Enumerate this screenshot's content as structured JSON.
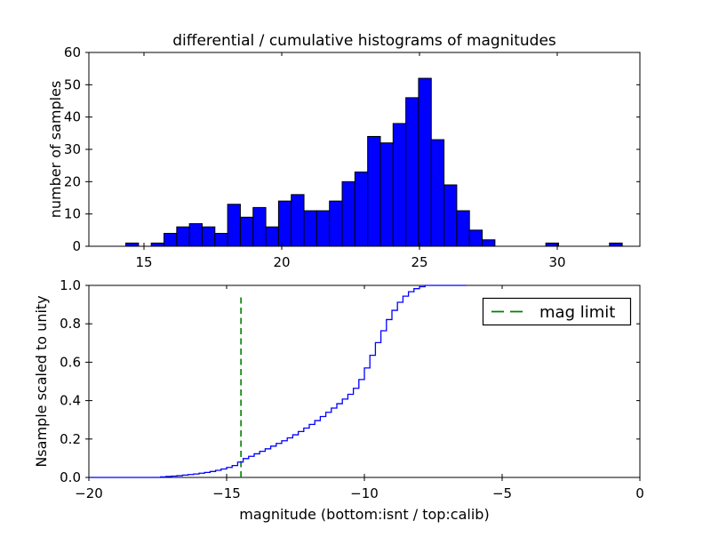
{
  "title": "differential / cumulative histograms of magnitudes",
  "colors": {
    "background": "#ffffff",
    "bar_fill": "#0000ff",
    "bar_edge": "#000000",
    "curve": "#0000ff",
    "mag_limit_line": "#008000",
    "axis": "#000000"
  },
  "chart_data": [
    {
      "type": "bar",
      "title": "differential / cumulative histograms of magnitudes",
      "xlabel": "",
      "ylabel": "number of samples",
      "xlim": [
        13,
        33
      ],
      "ylim": [
        0,
        60
      ],
      "grid": false,
      "x_tick_values": [
        15,
        20,
        25,
        30
      ],
      "x_tick_labels": [
        "15",
        "20",
        "25",
        "30"
      ],
      "y_tick_values": [
        0,
        10,
        20,
        30,
        40,
        50,
        60
      ],
      "y_tick_labels": [
        "0",
        "10",
        "20",
        "30",
        "40",
        "50",
        "60"
      ],
      "bin_start": 14.34,
      "bin_width": 0.462,
      "counts": [
        1,
        0,
        1,
        4,
        6,
        7,
        6,
        4,
        13,
        9,
        12,
        6,
        14,
        16,
        11,
        11,
        14,
        20,
        23,
        34,
        32,
        38,
        46,
        52,
        33,
        19,
        11,
        5,
        2,
        0,
        0,
        0,
        0,
        1,
        0,
        0,
        0,
        0,
        1
      ]
    },
    {
      "type": "line",
      "title": "",
      "xlabel": "magnitude (bottom:isnt / top:calib)",
      "ylabel": "Nsample scaled to unity",
      "xlim": [
        -20,
        0
      ],
      "ylim": [
        0.0,
        1.0
      ],
      "grid": false,
      "legend_position": "upper right",
      "x_tick_values": [
        -20,
        -15,
        -10,
        -5,
        0
      ],
      "x_tick_labels": [
        "−20",
        "−15",
        "−10",
        "−5",
        "0"
      ],
      "y_tick_values": [
        0.0,
        0.2,
        0.4,
        0.6,
        0.8,
        1.0
      ],
      "y_tick_labels": [
        "0.0",
        "0.2",
        "0.4",
        "0.6",
        "0.8",
        "1.0"
      ],
      "curve_start_x": -20,
      "curve_end_x": -6.3,
      "steps": [
        [
          -17.4,
          0.003
        ],
        [
          -17.2,
          0.005
        ],
        [
          -17.0,
          0.007
        ],
        [
          -16.8,
          0.009
        ],
        [
          -16.6,
          0.012
        ],
        [
          -16.4,
          0.015
        ],
        [
          -16.2,
          0.018
        ],
        [
          -16.0,
          0.022
        ],
        [
          -15.8,
          0.026
        ],
        [
          -15.6,
          0.031
        ],
        [
          -15.4,
          0.037
        ],
        [
          -15.2,
          0.044
        ],
        [
          -15.0,
          0.052
        ],
        [
          -14.8,
          0.062
        ],
        [
          -14.6,
          0.08
        ],
        [
          -14.4,
          0.098
        ],
        [
          -14.2,
          0.11
        ],
        [
          -14.0,
          0.123
        ],
        [
          -13.8,
          0.136
        ],
        [
          -13.6,
          0.149
        ],
        [
          -13.4,
          0.163
        ],
        [
          -13.2,
          0.177
        ],
        [
          -13.0,
          0.191
        ],
        [
          -12.8,
          0.206
        ],
        [
          -12.6,
          0.222
        ],
        [
          -12.4,
          0.239
        ],
        [
          -12.2,
          0.257
        ],
        [
          -12.0,
          0.276
        ],
        [
          -11.8,
          0.296
        ],
        [
          -11.6,
          0.317
        ],
        [
          -11.4,
          0.339
        ],
        [
          -11.2,
          0.361
        ],
        [
          -11.0,
          0.384
        ],
        [
          -10.8,
          0.408
        ],
        [
          -10.6,
          0.433
        ],
        [
          -10.4,
          0.464
        ],
        [
          -10.2,
          0.51
        ],
        [
          -10.0,
          0.57
        ],
        [
          -9.8,
          0.636
        ],
        [
          -9.6,
          0.702
        ],
        [
          -9.4,
          0.764
        ],
        [
          -9.2,
          0.822
        ],
        [
          -9.0,
          0.87
        ],
        [
          -8.8,
          0.912
        ],
        [
          -8.6,
          0.944
        ],
        [
          -8.4,
          0.967
        ],
        [
          -8.2,
          0.983
        ],
        [
          -8.0,
          0.993
        ],
        [
          -7.8,
          1.0
        ]
      ],
      "mag_limit_x": -14.48,
      "mag_limit_ymax": 0.94,
      "legend": {
        "label": "mag limit"
      }
    }
  ]
}
